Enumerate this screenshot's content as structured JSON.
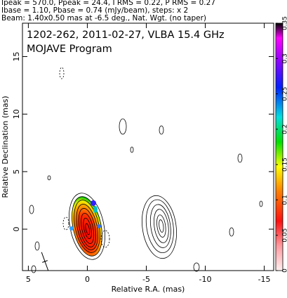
{
  "chart_data": {
    "type": "contour",
    "header": [
      "Ipeak = 570.0, Ppeak = 24.4, I RMS = 0.22, P RMS = 0.27",
      "Ibase = 1.10, Pbase = 0.74 (mJy/beam), steps: x 2",
      "Beam: 1.40x0.50 mas at -6.5 deg., Nat. Wgt. (no taper)"
    ],
    "title": "1202-262, 2011-02-27, VLBA 15.4 GHz",
    "subtitle": "MOJAVE Program",
    "xlabel": "Relative R.A. (mas)",
    "ylabel": "Relative Declination (mas)",
    "xlim": [
      5.5,
      -15.8
    ],
    "xticks": [
      5,
      0,
      -5,
      -10,
      -15
    ],
    "ylim": [
      -3.6,
      17.9
    ],
    "yticks": [
      0,
      5,
      10,
      15
    ],
    "clim": [
      0,
      0.35
    ],
    "cticks": [
      0,
      0.05,
      0.1,
      0.15,
      0.2,
      0.25,
      0.3,
      0.35
    ]
  }
}
